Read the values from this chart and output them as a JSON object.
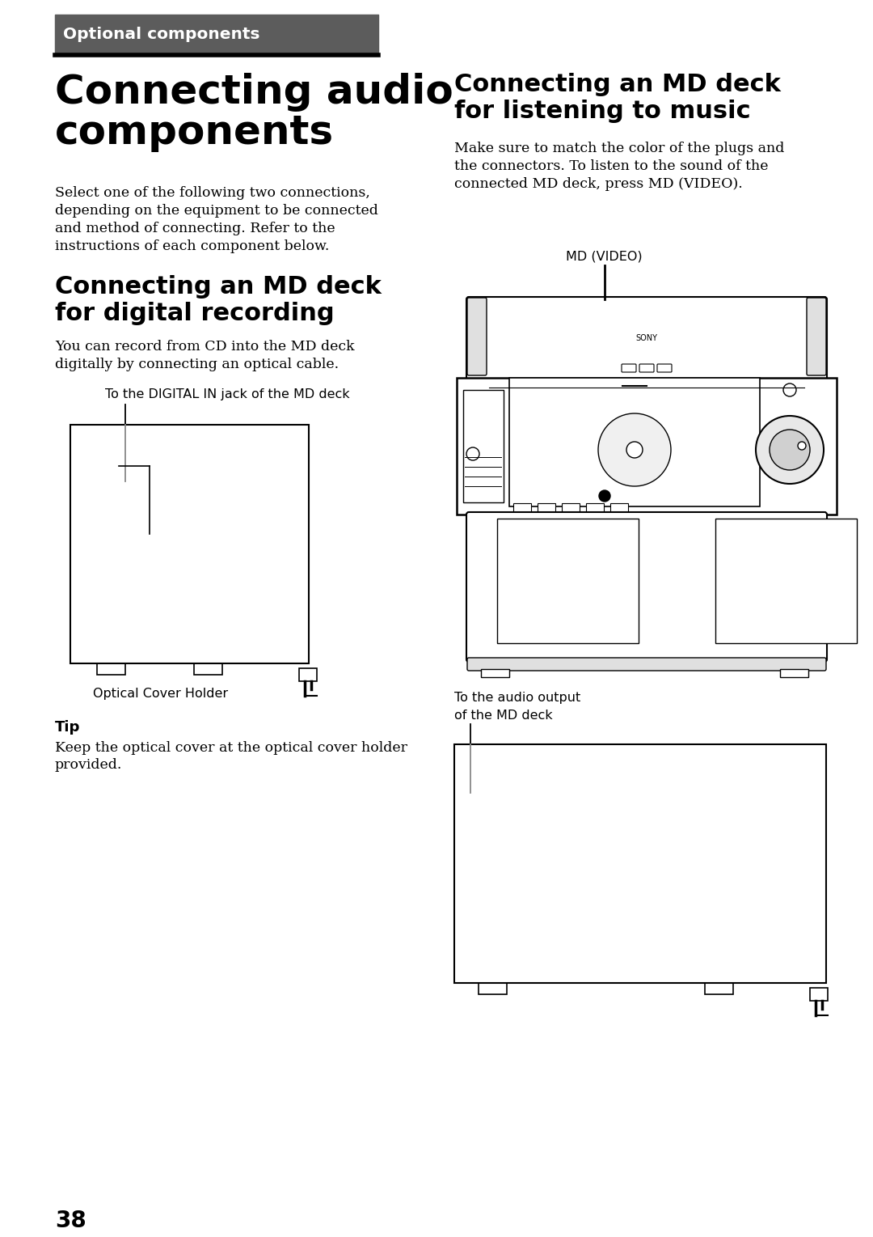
{
  "bg_color": "#ffffff",
  "header_bg": "#5c5c5c",
  "header_text": "Optional components",
  "header_text_color": "#ffffff",
  "main_title_line1": "Connecting audio",
  "main_title_line2": "components",
  "right_title_line1": "Connecting an MD deck",
  "right_title_line2": "for listening to music",
  "section1_line1": "Connecting an MD deck",
  "section1_line2": "for digital recording",
  "body_text1_lines": [
    "Select one of the following two connections,",
    "depending on the equipment to be connected",
    "and method of connecting. Refer to the",
    "instructions of each component below."
  ],
  "body_text2_lines": [
    "You can record from CD into the MD deck",
    "digitally by connecting an optical cable."
  ],
  "body_text3_lines": [
    "Make sure to match the color of the plugs and",
    "the connectors. To listen to the sound of the",
    "connected MD deck, press MD (VIDEO)."
  ],
  "label_digital_in": "To the DIGITAL IN jack of the MD deck",
  "label_optical_cover": "Optical Cover Holder",
  "label_md_video": "MD (VIDEO)",
  "label_audio_output_1": "To the audio output",
  "label_audio_output_2": "of the MD deck",
  "tip_title": "Tip",
  "tip_text_lines": [
    "Keep the optical cover at the optical cover holder",
    "provided."
  ],
  "page_number": "38",
  "lm": 68,
  "rc": 562,
  "col_mid": 530
}
